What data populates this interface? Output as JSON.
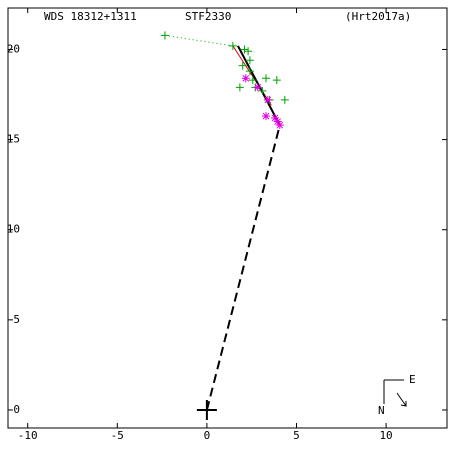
{
  "chart_data": {
    "type": "scatter",
    "annotations": [
      "WDS 18312+1311",
      "STF2330",
      "(Hrt2017a)"
    ],
    "xlim": [
      -11.1,
      13.4
    ],
    "ylim": [
      -1.0,
      22.3
    ],
    "xticks": [
      -10,
      -5,
      0,
      5,
      10
    ],
    "yticks": [
      0,
      5,
      10,
      15,
      20
    ],
    "grid": false,
    "compass": {
      "east": "E",
      "north": "N"
    },
    "lines": [
      {
        "color": "#00a000",
        "style": "dotted",
        "x": [
          -2.34,
          1.45
        ],
        "values": [
          20.78,
          20.2
        ]
      },
      {
        "color": "#e00000",
        "style": "solid",
        "x": [
          1.45,
          3.6
        ],
        "values": [
          20.2,
          16.9
        ]
      },
      {
        "color": "#000000",
        "style": "solid",
        "x": [
          1.73,
          4.07
        ],
        "values": [
          20.2,
          15.8
        ]
      },
      {
        "color": "#000000",
        "style": "dashed",
        "x": [
          0,
          4.07
        ],
        "values": [
          0,
          15.8
        ]
      }
    ],
    "series": [
      {
        "color": "#00a000",
        "marker": "plus",
        "x": [
          -2.34,
          1.45,
          2.1,
          2.3,
          2.0,
          2.4,
          2.56,
          1.84,
          3.3,
          3.9,
          2.7,
          3.1,
          4.35,
          3.5,
          2.4
        ],
        "values": [
          20.78,
          20.2,
          20.0,
          19.9,
          19.1,
          18.8,
          18.3,
          17.9,
          18.4,
          18.3,
          17.9,
          17.7,
          17.2,
          17.2,
          19.4
        ]
      },
      {
        "color": "#e000e0",
        "marker": "asterisk",
        "x": [
          2.17,
          2.84,
          3.4,
          3.3,
          3.8,
          3.95,
          4.07
        ],
        "values": [
          18.4,
          17.9,
          17.2,
          16.3,
          16.2,
          16.0,
          15.8
        ]
      },
      {
        "color": "#000000",
        "marker": "bigplus",
        "x": [
          0
        ],
        "values": [
          0
        ]
      }
    ]
  }
}
